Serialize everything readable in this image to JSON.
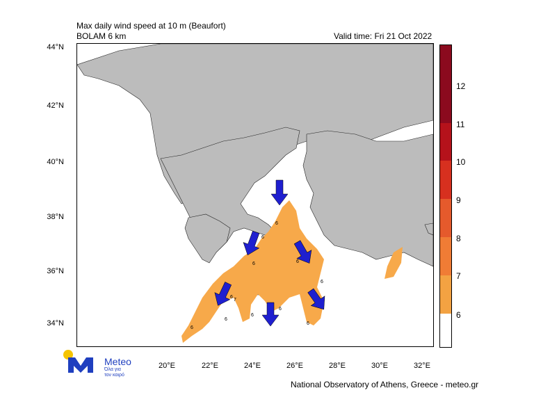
{
  "header": {
    "title": "Max daily wind speed at 10 m (Beaufort)",
    "model": "BOLAM 6 km",
    "valid_time": "Valid time: Fri 21 Oct 2022"
  },
  "footer": {
    "credit": "National Observatory of Athens, Greece - meteo.gr"
  },
  "logo": {
    "name": "Meteo",
    "tagline_1": "Όλα για",
    "tagline_2": "τον καιρό"
  },
  "axes": {
    "lat_labels": [
      "44°N",
      "42°N",
      "40°N",
      "38°N",
      "36°N",
      "34°N"
    ],
    "lon_labels": [
      "20°E",
      "22°E",
      "24°E",
      "26°E",
      "28°E",
      "30°E",
      "32°E"
    ]
  },
  "colorbar": {
    "labels": [
      "12",
      "11",
      "10",
      "9",
      "8",
      "7",
      "6"
    ],
    "colors": [
      "#8b0a1e",
      "#b5121b",
      "#d7301f",
      "#e55a2c",
      "#f07c35",
      "#f3a242",
      "#ffffff"
    ]
  },
  "map_labels": [
    "6",
    "6",
    "6",
    "6",
    "6",
    "6",
    "6",
    "7",
    "6",
    "6",
    "6",
    "6"
  ],
  "colors": {
    "land": "#bcbcbc",
    "sea": "#ffffff",
    "wind_7": "#f7a94a",
    "arrow": "#1f1fcf"
  }
}
